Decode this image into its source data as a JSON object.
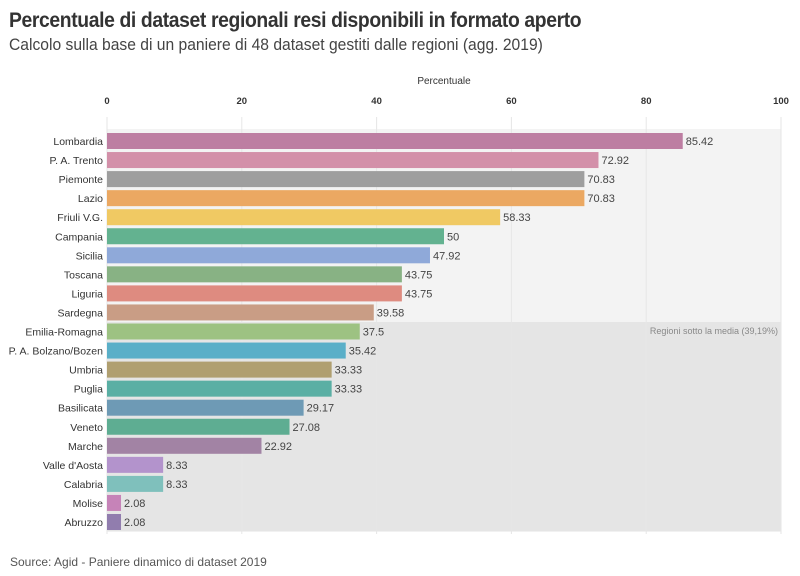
{
  "header": {
    "title": "Percentuale di dataset regionali resi disponibili in formato aperto",
    "subtitle": "Calcolo sulla base di un paniere di 48 dataset gestiti dalle regioni (agg. 2019)"
  },
  "footer": {
    "source": "Source: Agid - Paniere dinamico di dataset 2019"
  },
  "chart_data": {
    "type": "bar",
    "orientation": "horizontal",
    "title": "Percentuale di dataset regionali resi disponibili in formato aperto",
    "subtitle": "Calcolo sulla base di un paniere di 48 dataset gestiti dalle regioni (agg. 2019)",
    "xlabel": "Percentuale",
    "ylabel": "",
    "xlim": [
      0,
      100
    ],
    "xticks": [
      0,
      20,
      40,
      60,
      80,
      100
    ],
    "x_axis_position": "top",
    "grid": true,
    "categories": [
      "Lombardia",
      "P. A. Trento",
      "Piemonte",
      "Lazio",
      "Friuli V.G.",
      "Campania",
      "Sicilia",
      "Toscana",
      "Liguria",
      "Sardegna",
      "Emilia-Romagna",
      "P. A. Bolzano/Bozen",
      "Umbria",
      "Puglia",
      "Basilicata",
      "Veneto",
      "Marche",
      "Valle d'Aosta",
      "Calabria",
      "Molise",
      "Abruzzo"
    ],
    "values": [
      85.42,
      72.92,
      70.83,
      70.83,
      58.33,
      50,
      47.92,
      43.75,
      43.75,
      39.58,
      37.5,
      35.42,
      33.33,
      33.33,
      29.17,
      27.08,
      22.92,
      8.33,
      8.33,
      2.08,
      2.08
    ],
    "value_labels": [
      "85.42",
      "72.92",
      "70.83",
      "70.83",
      "58.33",
      "50",
      "47.92",
      "43.75",
      "43.75",
      "39.58",
      "37.5",
      "35.42",
      "33.33",
      "33.33",
      "29.17",
      "27.08",
      "22.92",
      "8.33",
      "8.33",
      "2.08",
      "2.08"
    ],
    "colors": [
      "#bd7ea2",
      "#d390a9",
      "#9e9e9e",
      "#eba862",
      "#f0c963",
      "#63b290",
      "#8fa9d9",
      "#88b284",
      "#de8b80",
      "#c99d85",
      "#9dc282",
      "#5aafc8",
      "#b09f70",
      "#5aafa4",
      "#6e9ab5",
      "#5ead92",
      "#a283a4",
      "#b393cc",
      "#7fc0bc",
      "#c683b8",
      "#917dae"
    ],
    "bands": [
      {
        "label": "",
        "from_category": "Lombardia",
        "to_category": "Sardegna",
        "color": "#f3f3f3"
      },
      {
        "label": "Regioni sotto la media (39,19%)",
        "from_category": "Emilia-Romagna",
        "to_category": "Abruzzo",
        "color": "#e5e5e5"
      }
    ],
    "annotations": [
      {
        "text": "Regioni sotto la media (39,19%)",
        "position": "right"
      }
    ],
    "average": 39.19
  }
}
